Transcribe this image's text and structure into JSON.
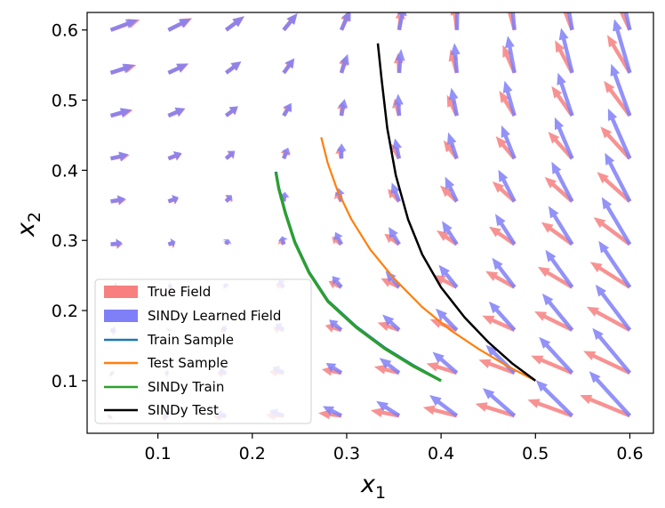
{
  "chart_data": {
    "type": "quiver+line",
    "xlabel": "x",
    "xlabel_sub": "1",
    "ylabel": "x",
    "ylabel_sub": "2",
    "xlim": [
      0.025,
      0.625
    ],
    "ylim": [
      0.025,
      0.625
    ],
    "xticks": [
      0.1,
      0.2,
      0.3,
      0.4,
      0.5,
      0.6
    ],
    "yticks": [
      0.1,
      0.2,
      0.3,
      0.4,
      0.5,
      0.6
    ],
    "grid": false,
    "legend_position": "lower-left",
    "quiver_grid": {
      "x": [
        0.05,
        0.1111,
        0.1722,
        0.2333,
        0.2944,
        0.3556,
        0.4167,
        0.4778,
        0.5389,
        0.6
      ],
      "y": [
        0.05,
        0.1111,
        0.1722,
        0.2333,
        0.2944,
        0.3556,
        0.4167,
        0.4778,
        0.5389,
        0.6
      ]
    },
    "fields": [
      {
        "name": "True Field",
        "color": "#f77f7f"
      },
      {
        "name": "SINDy Learned Field",
        "color": "#7f7ff7"
      }
    ],
    "series": [
      {
        "name": "Train Sample",
        "color": "#1f77b4",
        "x": [
          0.4,
          0.37,
          0.34,
          0.31,
          0.28,
          0.26,
          0.245,
          0.235,
          0.228,
          0.225
        ],
        "y": [
          0.1,
          0.122,
          0.147,
          0.177,
          0.214,
          0.255,
          0.298,
          0.34,
          0.375,
          0.398
        ]
      },
      {
        "name": "Test Sample",
        "color": "#ff7f0e",
        "x": [
          0.5,
          0.47,
          0.44,
          0.41,
          0.38,
          0.35,
          0.325,
          0.305,
          0.29,
          0.28,
          0.273
        ],
        "y": [
          0.1,
          0.121,
          0.145,
          0.172,
          0.205,
          0.246,
          0.287,
          0.33,
          0.372,
          0.41,
          0.447
        ]
      },
      {
        "name": "SINDy Train",
        "color": "#2ca02c",
        "x": [
          0.4,
          0.37,
          0.34,
          0.31,
          0.28,
          0.26,
          0.245,
          0.235,
          0.228,
          0.225
        ],
        "y": [
          0.1,
          0.121,
          0.146,
          0.176,
          0.213,
          0.254,
          0.297,
          0.339,
          0.374,
          0.397
        ]
      },
      {
        "name": "SINDy Test",
        "color": "#000000",
        "x": [
          0.5,
          0.475,
          0.45,
          0.425,
          0.4,
          0.38,
          0.365,
          0.352,
          0.343,
          0.337,
          0.333
        ],
        "y": [
          0.1,
          0.125,
          0.155,
          0.19,
          0.233,
          0.28,
          0.33,
          0.393,
          0.46,
          0.53,
          0.581
        ]
      }
    ]
  }
}
